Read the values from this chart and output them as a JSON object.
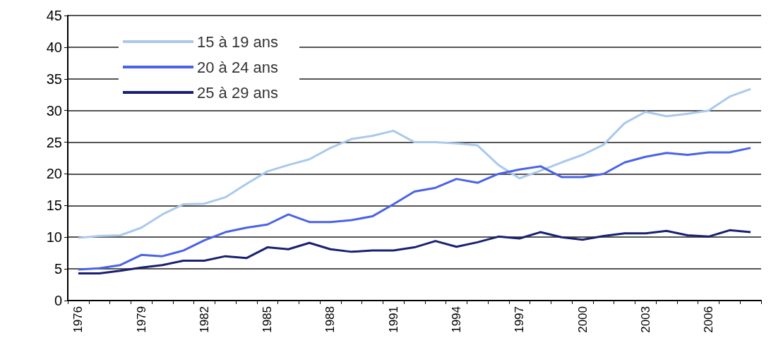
{
  "chart_data": {
    "type": "line",
    "categories": [
      "1976",
      null,
      null,
      "1979",
      null,
      null,
      "1982",
      null,
      null,
      "1985",
      null,
      null,
      "1988",
      null,
      null,
      "1991",
      null,
      null,
      "1994",
      null,
      null,
      "1997",
      null,
      null,
      "2000",
      null,
      null,
      "2003",
      null,
      null,
      "2006",
      null,
      null
    ],
    "series": [
      {
        "name": "15 à 19 ans",
        "color": "#a9c9ec",
        "values": [
          9.9,
          10.2,
          10.3,
          11.5,
          13.6,
          15.2,
          15.3,
          16.3,
          18.4,
          20.4,
          21.4,
          22.3,
          24.1,
          25.5,
          26,
          26.8,
          25,
          25,
          24.8,
          24.5,
          21.4,
          19.3,
          20.5,
          21.8,
          23,
          24.6,
          28,
          29.8,
          29.1,
          29.5,
          30,
          32.2,
          33.4
        ]
      },
      {
        "name": "20 à 24 ans",
        "color": "#4a63e8",
        "values": [
          4.9,
          5.1,
          5.6,
          7.2,
          7,
          7.9,
          9.5,
          10.8,
          11.5,
          12,
          13.6,
          12.4,
          12.4,
          12.7,
          13.3,
          15.2,
          17.2,
          17.8,
          19.2,
          18.6,
          20,
          20.7,
          21.2,
          19.5,
          19.5,
          20,
          21.8,
          22.7,
          23.3,
          23,
          23.4,
          23.4,
          24.1
        ]
      },
      {
        "name": "25 à 29 ans",
        "color": "#1a2070",
        "values": [
          4.3,
          4.3,
          4.7,
          5.2,
          5.6,
          6.3,
          6.3,
          7,
          6.7,
          8.4,
          8.1,
          9.1,
          8.1,
          7.7,
          7.9,
          7.9,
          8.4,
          9.4,
          8.5,
          9.2,
          10.1,
          9.8,
          10.8,
          10,
          9.6,
          10.2,
          10.6,
          10.6,
          11,
          10.3,
          10.1,
          11.1,
          10.8
        ]
      }
    ],
    "ylim": [
      0,
      45
    ],
    "yticks": [
      0,
      5,
      10,
      15,
      20,
      25,
      30,
      35,
      40,
      45
    ],
    "grid": "y",
    "legend": "top left",
    "marker": "none",
    "line_style": "solid"
  }
}
